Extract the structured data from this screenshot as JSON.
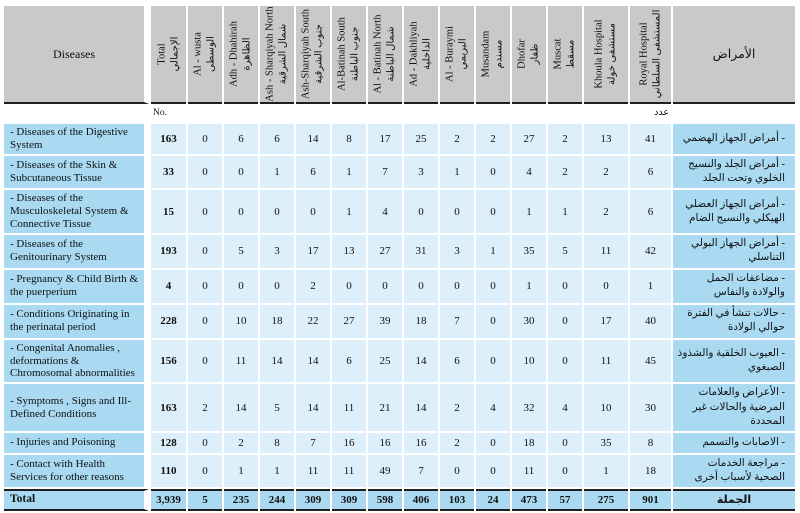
{
  "page": {
    "corner_en": "Diseases",
    "corner_ar": "الأمراض",
    "units_no": "No.",
    "units_adad": "عدد"
  },
  "columns": [
    {
      "en": "Total",
      "ar": "الإجمالي"
    },
    {
      "en": "Al - wusta",
      "ar": "الوسطى"
    },
    {
      "en": "Adh - Dhahirah",
      "ar": "الظاهرة"
    },
    {
      "en": "Ash - Sharqiyah North",
      "ar": "شمال الشرقية"
    },
    {
      "en": "Ash-Sharqiyah South",
      "ar": "جنوب الشرقية"
    },
    {
      "en": "Al-Batinah South",
      "ar": "جنوب الباطنة"
    },
    {
      "en": "Al - Batinah North",
      "ar": "شمال الباطنة"
    },
    {
      "en": "Ad - Dakhliyah",
      "ar": "الداخلية"
    },
    {
      "en": "Al - Buraymi",
      "ar": "البريمي"
    },
    {
      "en": "Musandam",
      "ar": "مسندم"
    },
    {
      "en": "Dhofar",
      "ar": "ظفار"
    },
    {
      "en": "Muscat",
      "ar": "مسقط"
    },
    {
      "en": "Khoula Hospital",
      "ar": "مستشفى خولة"
    },
    {
      "en": "Royal Hospital",
      "ar": "المستشفى السلطاني"
    }
  ],
  "rows": [
    {
      "en": "- Diseases of the Digestive System",
      "ar": "- أمراض الجهاز الهضمي",
      "values": [
        "163",
        "0",
        "6",
        "6",
        "14",
        "8",
        "17",
        "25",
        "2",
        "2",
        "27",
        "2",
        "13",
        "41"
      ]
    },
    {
      "en": "- Diseases of the Skin & Subcutaneous Tissue",
      "ar": "- أمراض الجلد والنسيج الخلوي وتحت الجلد",
      "values": [
        "33",
        "0",
        "0",
        "1",
        "6",
        "1",
        "7",
        "3",
        "1",
        "0",
        "4",
        "2",
        "2",
        "6"
      ]
    },
    {
      "en": "- Diseases of the Musculoskeletal System & Connective Tissue",
      "ar": "- أمراض الجهاز العضلي الهيكلي والنسيج الضام",
      "values": [
        "15",
        "0",
        "0",
        "0",
        "0",
        "1",
        "4",
        "0",
        "0",
        "0",
        "1",
        "1",
        "2",
        "6"
      ]
    },
    {
      "en": "- Diseases of the Genitourinary  System",
      "ar": "- أمراض الجهاز البولي التناسلي",
      "values": [
        "193",
        "0",
        "5",
        "3",
        "17",
        "13",
        "27",
        "31",
        "3",
        "1",
        "35",
        "5",
        "11",
        "42"
      ]
    },
    {
      "en": "- Pregnancy & Child Birth & the puerperium",
      "ar": "- مضاعفات الحمل والولادة والنفاس",
      "values": [
        "4",
        "0",
        "0",
        "0",
        "2",
        "0",
        "0",
        "0",
        "0",
        "0",
        "1",
        "0",
        "0",
        "1"
      ]
    },
    {
      "en": "- Conditions Originating in the perinatal period",
      "ar": "- حالات تنشأ في الفترة حوالي الولادة",
      "values": [
        "228",
        "0",
        "10",
        "18",
        "22",
        "27",
        "39",
        "18",
        "7",
        "0",
        "30",
        "0",
        "17",
        "40"
      ]
    },
    {
      "en": "- Congenital Anomalies , deformations & Chromosomal abnormalities",
      "ar": "- العيوب الخلقية والشذوذ الصبغوي",
      "values": [
        "156",
        "0",
        "11",
        "14",
        "14",
        "6",
        "25",
        "14",
        "6",
        "0",
        "10",
        "0",
        "11",
        "45"
      ]
    },
    {
      "en": "- Symptoms , Signs and Ill-Defined Conditions",
      "ar": "- الأعراض والعلامات المرضية والحالات غير المحددة",
      "values": [
        "163",
        "2",
        "14",
        "5",
        "14",
        "11",
        "21",
        "14",
        "2",
        "4",
        "32",
        "4",
        "10",
        "30"
      ]
    },
    {
      "en": "- Injuries and Poisoning",
      "ar": "- الاصابات والتسمم",
      "values": [
        "128",
        "0",
        "2",
        "8",
        "7",
        "16",
        "16",
        "16",
        "2",
        "0",
        "18",
        "0",
        "35",
        "8"
      ]
    },
    {
      "en": "- Contact with Health  Services for other reasons",
      "ar": "- مراجعة الخدمات الصحية لأسباب أخرى",
      "values": [
        "110",
        "0",
        "1",
        "1",
        "11",
        "11",
        "49",
        "7",
        "0",
        "0",
        "11",
        "0",
        "1",
        "18"
      ]
    }
  ],
  "total": {
    "en": "Total",
    "ar": "الجملة",
    "values": [
      "3,939",
      "5",
      "235",
      "244",
      "309",
      "309",
      "598",
      "406",
      "103",
      "24",
      "473",
      "57",
      "275",
      "901"
    ]
  },
  "colors": {
    "header_bg": "#c9c9c9",
    "label_bg": "#a9daf2",
    "value_bg": "#dceffb",
    "rule": "#1f1f1f"
  }
}
